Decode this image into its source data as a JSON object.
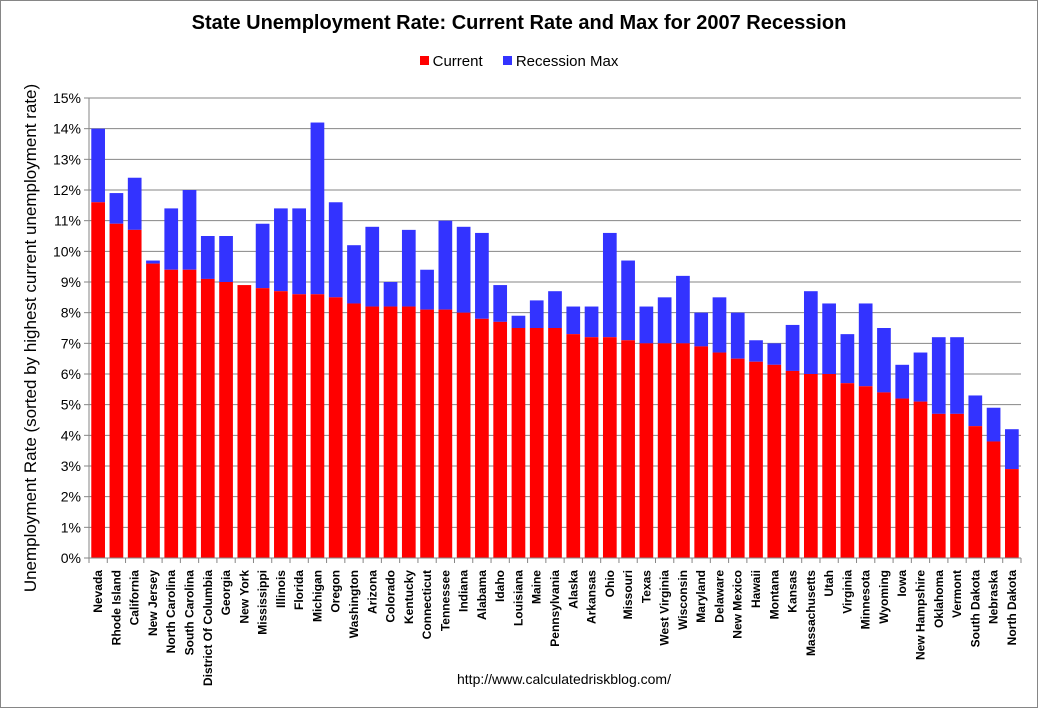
{
  "chart_data": {
    "type": "bar",
    "title": "State Unemployment Rate: Current Rate and Max for 2007 Recession",
    "ylabel": "Unemployment Rate (sorted by highest current unemployment rate)",
    "xlabel": "",
    "ylim": [
      0,
      15
    ],
    "yticks": [
      "0%",
      "1%",
      "2%",
      "3%",
      "4%",
      "5%",
      "6%",
      "7%",
      "8%",
      "9%",
      "10%",
      "11%",
      "12%",
      "13%",
      "14%",
      "15%"
    ],
    "grid": true,
    "legend_position": "top",
    "categories": [
      "Nevada",
      "Rhode Island",
      "California",
      "New Jersey",
      "North Carolina",
      "South Carolina",
      "District Of Columbia",
      "Georgia",
      "New York",
      "Mississippi",
      "Illinois",
      "Florida",
      "Michigan",
      "Oregon",
      "Washington",
      "Arizona",
      "Colorado",
      "Kentucky",
      "Connecticut",
      "Tennessee",
      "Indiana",
      "Alabama",
      "Idaho",
      "Louisiana",
      "Maine",
      "Pennsylvania",
      "Alaska",
      "Arkansas",
      "Ohio",
      "Missouri",
      "Texas",
      "West Virginia",
      "Wisconsin",
      "Maryland",
      "Delaware",
      "New Mexico",
      "Hawaii",
      "Montana",
      "Kansas",
      "Massachusetts",
      "Utah",
      "Virginia",
      "Minnesota",
      "Wyoming",
      "Iowa",
      "New Hampshire",
      "Oklahoma",
      "Vermont",
      "South Dakota",
      "Nebraska",
      "North Dakota"
    ],
    "series": [
      {
        "name": "Current",
        "color": "#ff0000",
        "values": [
          11.6,
          10.9,
          10.7,
          9.6,
          9.4,
          9.4,
          9.1,
          9.0,
          8.9,
          8.8,
          8.7,
          8.6,
          8.6,
          8.5,
          8.3,
          8.2,
          8.2,
          8.2,
          8.1,
          8.1,
          8.0,
          7.8,
          7.7,
          7.5,
          7.5,
          7.5,
          7.3,
          7.2,
          7.2,
          7.1,
          7.0,
          7.0,
          7.0,
          6.9,
          6.7,
          6.5,
          6.4,
          6.3,
          6.1,
          6.0,
          6.0,
          5.7,
          5.6,
          5.4,
          5.2,
          5.1,
          4.7,
          4.7,
          4.3,
          3.8,
          2.9
        ]
      },
      {
        "name": "Recession Max",
        "color": "#3333ff",
        "values": [
          14.0,
          11.9,
          12.4,
          9.7,
          11.4,
          12.0,
          10.5,
          10.5,
          8.9,
          10.9,
          11.4,
          11.4,
          14.2,
          11.6,
          10.2,
          10.8,
          9.0,
          10.7,
          9.4,
          11.0,
          10.8,
          10.6,
          8.9,
          7.9,
          8.4,
          8.7,
          8.2,
          8.2,
          10.6,
          9.7,
          8.2,
          8.5,
          9.2,
          8.0,
          8.5,
          8.0,
          7.1,
          7.0,
          7.6,
          8.7,
          8.3,
          7.3,
          8.3,
          7.5,
          6.3,
          6.7,
          7.2,
          7.2,
          5.3,
          4.9,
          4.2
        ]
      }
    ]
  },
  "source_text": "http://www.calculatedriskblog.com/"
}
